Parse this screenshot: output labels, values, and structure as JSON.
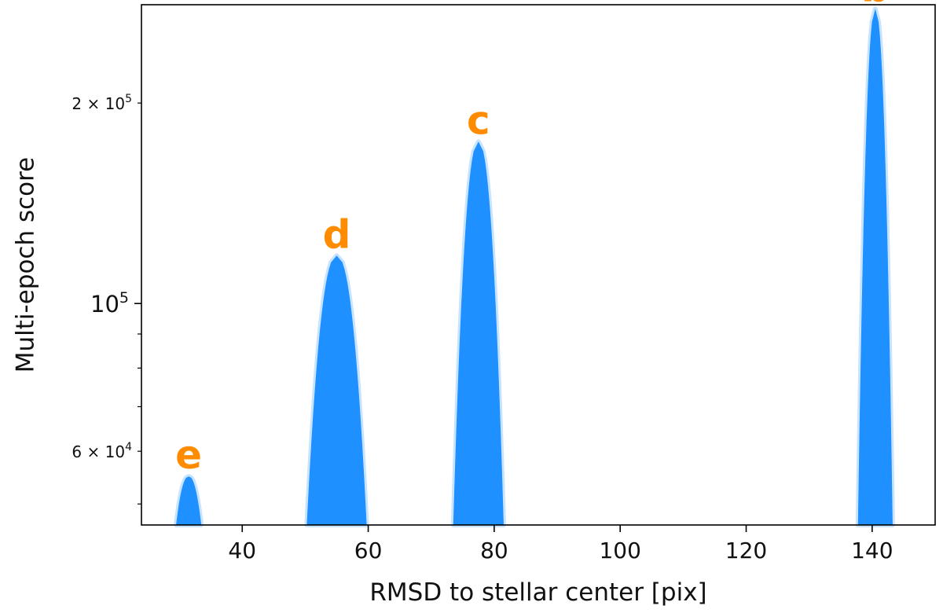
{
  "chart_data": {
    "type": "area",
    "title": "",
    "xlabel": "RMSD to stellar center [pix]",
    "ylabel": "Multi-epoch score",
    "x_scale": "linear",
    "y_scale": "log",
    "xlim": [
      24,
      150
    ],
    "ylim": [
      46500,
      281000
    ],
    "x_ticks": [
      {
        "value": 40,
        "label": "40"
      },
      {
        "value": 60,
        "label": "60"
      },
      {
        "value": 80,
        "label": "80"
      },
      {
        "value": 100,
        "label": "100"
      },
      {
        "value": 120,
        "label": "120"
      },
      {
        "value": 140,
        "label": "140"
      }
    ],
    "y_major_ticks": [
      {
        "value": 100000,
        "label": "10^5",
        "base": "10",
        "exp": "5"
      }
    ],
    "y_minor_ticks": [
      {
        "value": 60000,
        "label": "6×10^4",
        "mant": "6",
        "base": "10",
        "exp": "4"
      },
      {
        "value": 200000,
        "label": "2×10^5",
        "mant": "2",
        "base": "10",
        "exp": "5"
      }
    ],
    "y_unlabeled_minor_ticks": [
      50000,
      70000,
      80000,
      90000
    ],
    "grid": false,
    "series_color": "#1e90ff",
    "annotation_color": "#ff8c00",
    "peaks": [
      {
        "label": "e",
        "center": 31.5,
        "peak": 55000,
        "left_base": 29.5,
        "right_base": 33.5
      },
      {
        "label": "d",
        "center": 55.0,
        "peak": 118000,
        "left_base": 50.5,
        "right_base": 60.0
      },
      {
        "label": "c",
        "center": 77.5,
        "peak": 175000,
        "left_base": 73.0,
        "right_base": 81.0
      },
      {
        "label": "b",
        "center": 140.5,
        "peak": 277000,
        "left_base": 137.5,
        "right_base": 143.0
      }
    ]
  }
}
